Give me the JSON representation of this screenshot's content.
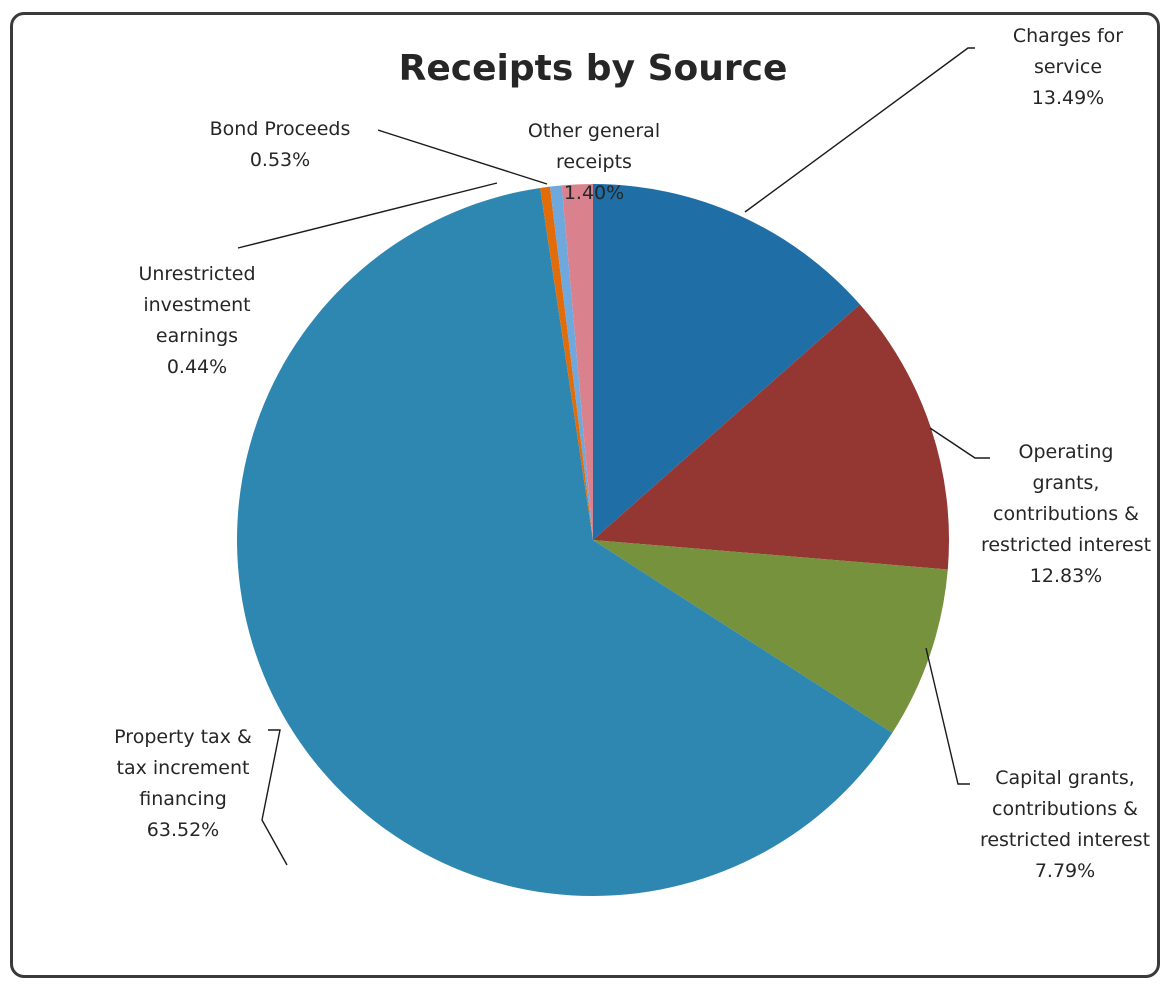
{
  "chart_data": {
    "type": "pie",
    "title": "Receipts by Source",
    "slices": [
      {
        "label_lines": [
          "Charges for",
          "service"
        ],
        "value_label": "13.49%",
        "value": 13.49,
        "color": "#1F6FA6"
      },
      {
        "label_lines": [
          "Operating",
          "grants,",
          "contributions &",
          "restricted interest"
        ],
        "value_label": "12.83%",
        "value": 12.83,
        "color": "#943632"
      },
      {
        "label_lines": [
          "Capital grants,",
          "contributions &",
          "restricted interest"
        ],
        "value_label": "7.79%",
        "value": 7.79,
        "color": "#76923C"
      },
      {
        "label_lines": [
          "Property tax &",
          "tax increment",
          "financing"
        ],
        "value_label": "63.52%",
        "value": 63.52,
        "color": "#2E87B0"
      },
      {
        "label_lines": [
          "Unrestricted",
          "investment",
          "earnings"
        ],
        "value_label": "0.44%",
        "value": 0.44,
        "color": "#E36C0A"
      },
      {
        "label_lines": [
          "Bond Proceeds"
        ],
        "value_label": "0.53%",
        "value": 0.53,
        "color": "#6FA8DC"
      },
      {
        "label_lines": [
          "Other general",
          "receipts"
        ],
        "value_label": "1.40%",
        "value": 1.4,
        "color": "#D9828E"
      }
    ]
  }
}
